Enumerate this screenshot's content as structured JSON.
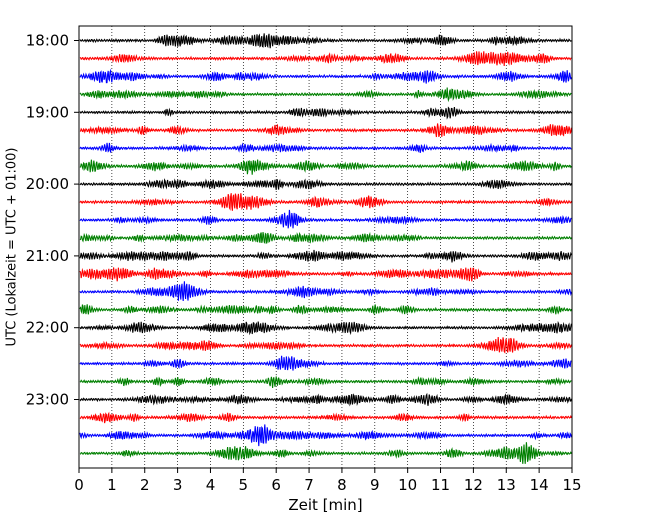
{
  "chart_data": {
    "type": "line",
    "title": "",
    "xlabel": "Zeit  [min]",
    "ylabel": "UTC (Lokalzeit = UTC + 01:00)",
    "xlim": [
      0,
      15
    ],
    "x_ticks": [
      "0",
      "1",
      "2",
      "3",
      "4",
      "5",
      "6",
      "7",
      "8",
      "9",
      "10",
      "11",
      "12",
      "13",
      "14",
      "15"
    ],
    "y_ticks": [
      "18:00",
      "19:00",
      "20:00",
      "21:00",
      "22:00",
      "23:00"
    ],
    "traces_per_hour": 4,
    "trace_start_hours": [
      "18:00",
      "18:15",
      "18:30",
      "18:45",
      "19:00",
      "19:15",
      "19:30",
      "19:45",
      "20:00",
      "20:15",
      "20:30",
      "20:45",
      "21:00",
      "21:15",
      "21:30",
      "21:45",
      "22:00",
      "22:15",
      "22:30",
      "22:45",
      "23:00",
      "23:15",
      "23:30",
      "23:45"
    ],
    "series_colors": [
      "#000000",
      "#ff0000",
      "#0000ff",
      "#008000"
    ],
    "grid": {
      "x_vertical_dotted": true,
      "y": false
    },
    "legend": "none"
  }
}
